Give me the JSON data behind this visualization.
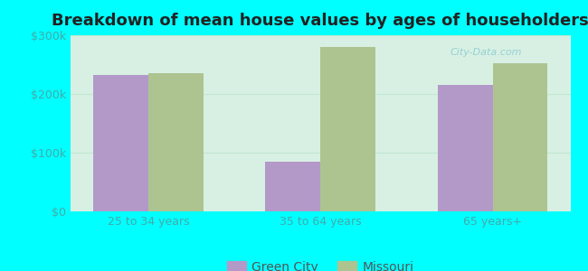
{
  "title": "Breakdown of mean house values by ages of householders",
  "categories": [
    "25 to 34 years",
    "35 to 64 years",
    "65 years+"
  ],
  "green_city_values": [
    232000,
    85000,
    215000
  ],
  "missouri_values": [
    235000,
    280000,
    252000
  ],
  "green_city_color": "#b399c8",
  "missouri_color": "#adc490",
  "background_color": "#00ffff",
  "plot_bg_top": "#e8f7ef",
  "plot_bg_bottom": "#c8eedc",
  "ylim": [
    0,
    300000
  ],
  "yticks": [
    0,
    100000,
    200000,
    300000
  ],
  "ytick_labels": [
    "$0",
    "$100k",
    "$200k",
    "$300k"
  ],
  "bar_width": 0.32,
  "legend_labels": [
    "Green City",
    "Missouri"
  ],
  "title_fontsize": 13,
  "tick_fontsize": 9,
  "legend_fontsize": 10,
  "watermark": "City-Data.com"
}
